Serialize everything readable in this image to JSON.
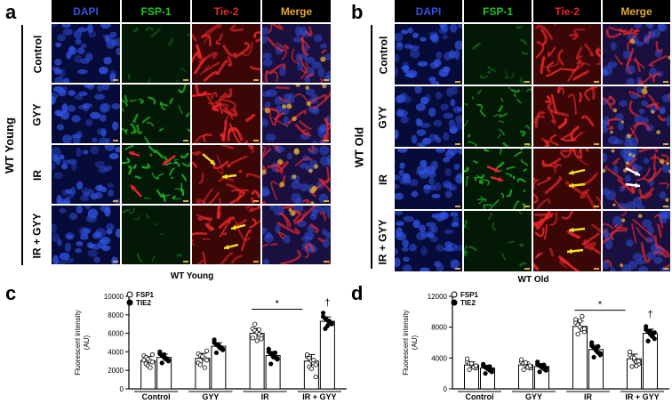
{
  "panels": {
    "a": {
      "letter": "a",
      "group": "WT Young",
      "caption": "WT Young",
      "columns": [
        "DAPI",
        "FSP-1",
        "Tie-2",
        "Merge"
      ],
      "rows": [
        "Control",
        "GYY",
        "IR",
        "IR + GYY"
      ]
    },
    "b": {
      "letter": "b",
      "group": "WT Old",
      "caption": "WT Old",
      "columns": [
        "DAPI",
        "FSP-1",
        "Tie-2",
        "Merge"
      ],
      "rows": [
        "Control",
        "GYY",
        "IR",
        "IR + GYY"
      ]
    },
    "c": {
      "letter": "c"
    },
    "d": {
      "letter": "d"
    }
  },
  "colors": {
    "dapi": "#2f52e0",
    "fsp1": "#22c52a",
    "tie2": "#e8262a",
    "merge": "#e0a832",
    "arrow_red": "#e8262a",
    "arrow_yellow": "#f5e21c",
    "arrow_white": "#ffffff"
  },
  "chart_data": [
    {
      "type": "bar",
      "ylabel": "Fluorescent intensity (AU)",
      "ylabel_lines": [
        "Fluorescent intensity",
        "(AU)"
      ],
      "ylim": [
        0,
        10000
      ],
      "yticks": [
        0,
        2000,
        4000,
        6000,
        8000,
        10000
      ],
      "categories": [
        "Control",
        "GYY",
        "IR",
        "IR + GYY"
      ],
      "legend": {
        "placement": "top-left"
      },
      "series": [
        {
          "name": "FSP1",
          "marker": "open-circle",
          "values": [
            3050,
            3300,
            6000,
            3000
          ],
          "points": [
            [
              3600,
              3400,
              3200,
              3000,
              2900,
              3100,
              2700,
              2500,
              2300,
              3700
            ],
            [
              3800,
              3600,
              3400,
              3300,
              3100,
              2800,
              2600,
              3500,
              2300,
              4100
            ],
            [
              6500,
              6300,
              6100,
              5900,
              5700,
              5500,
              7000,
              5200,
              6400,
              5400
            ],
            [
              3500,
              3300,
              3000,
              2800,
              2600,
              3700,
              2400,
              2200,
              3100,
              1300
            ]
          ]
        },
        {
          "name": "TIE2",
          "marker": "filled-circle",
          "values": [
            3400,
            4600,
            3600,
            7300
          ],
          "points": [
            [
              3800,
              3600,
              3400,
              3200,
              3000,
              4000,
              2800,
              3700,
              3300,
              3100
            ],
            [
              5000,
              4800,
              4600,
              4400,
              4200,
              5300,
              3900,
              4700,
              4500,
              4300
            ],
            [
              4000,
              3800,
              3600,
              3400,
              3200,
              4300,
              2700,
              3500,
              3900,
              3300
            ],
            [
              7800,
              7600,
              7400,
              7200,
              7000,
              8200,
              6500,
              6800,
              7300,
              7100
            ]
          ]
        }
      ],
      "annotations": [
        {
          "text": "*",
          "from_category": "IR",
          "to_category": "IR + GYY",
          "y": 8600,
          "bar": true
        },
        {
          "text": "†",
          "category": "IR + GYY",
          "series": "TIE2",
          "y": 9000
        }
      ]
    },
    {
      "type": "bar",
      "ylabel": "Fluorescent intensity (AU)",
      "ylabel_lines": [
        "Fluorescent intensity",
        "(AU)"
      ],
      "ylim": [
        0,
        12000
      ],
      "yticks": [
        0,
        4000,
        8000,
        12000
      ],
      "categories": [
        "Control",
        "GYY",
        "IR",
        "IR + GYY"
      ],
      "legend": {
        "placement": "top-left"
      },
      "series": [
        {
          "name": "FSP1",
          "marker": "open-circle",
          "values": [
            3100,
            3100,
            8100,
            3900
          ],
          "points": [
            [
              3500,
              3300,
              3100,
              2900,
              2700,
              3900,
              2500,
              3300,
              2800,
              3000
            ],
            [
              3500,
              3300,
              3100,
              2900,
              2700,
              3800,
              2500,
              3400,
              2800,
              3000
            ],
            [
              8600,
              8300,
              8000,
              7700,
              7400,
              9000,
              7100,
              8800,
              9400,
              7800
            ],
            [
              4400,
              4100,
              3800,
              3500,
              3200,
              4800,
              2900,
              4000,
              3000,
              3600
            ]
          ]
        },
        {
          "name": "TIE2",
          "marker": "filled-circle",
          "values": [
            2700,
            2900,
            5100,
            7200
          ],
          "points": [
            [
              3000,
              2800,
              2600,
              2400,
              2200,
              3200,
              2000,
              2700,
              2900,
              2500
            ],
            [
              3200,
              3000,
              2800,
              2600,
              2400,
              3500,
              2200,
              2900,
              3100,
              2700
            ],
            [
              5600,
              5300,
              5000,
              4700,
              4400,
              6000,
              4100,
              5200,
              5500,
              4600
            ],
            [
              7700,
              7400,
              7100,
              6800,
              6500,
              8100,
              6200,
              7500,
              7000,
              7300
            ]
          ]
        }
      ],
      "annotations": [
        {
          "text": "*",
          "from_category": "IR",
          "to_category": "IR + GYY",
          "y": 10200,
          "bar": true
        },
        {
          "text": "†",
          "category": "IR + GYY",
          "series": "TIE2",
          "y": 9300
        }
      ]
    }
  ]
}
